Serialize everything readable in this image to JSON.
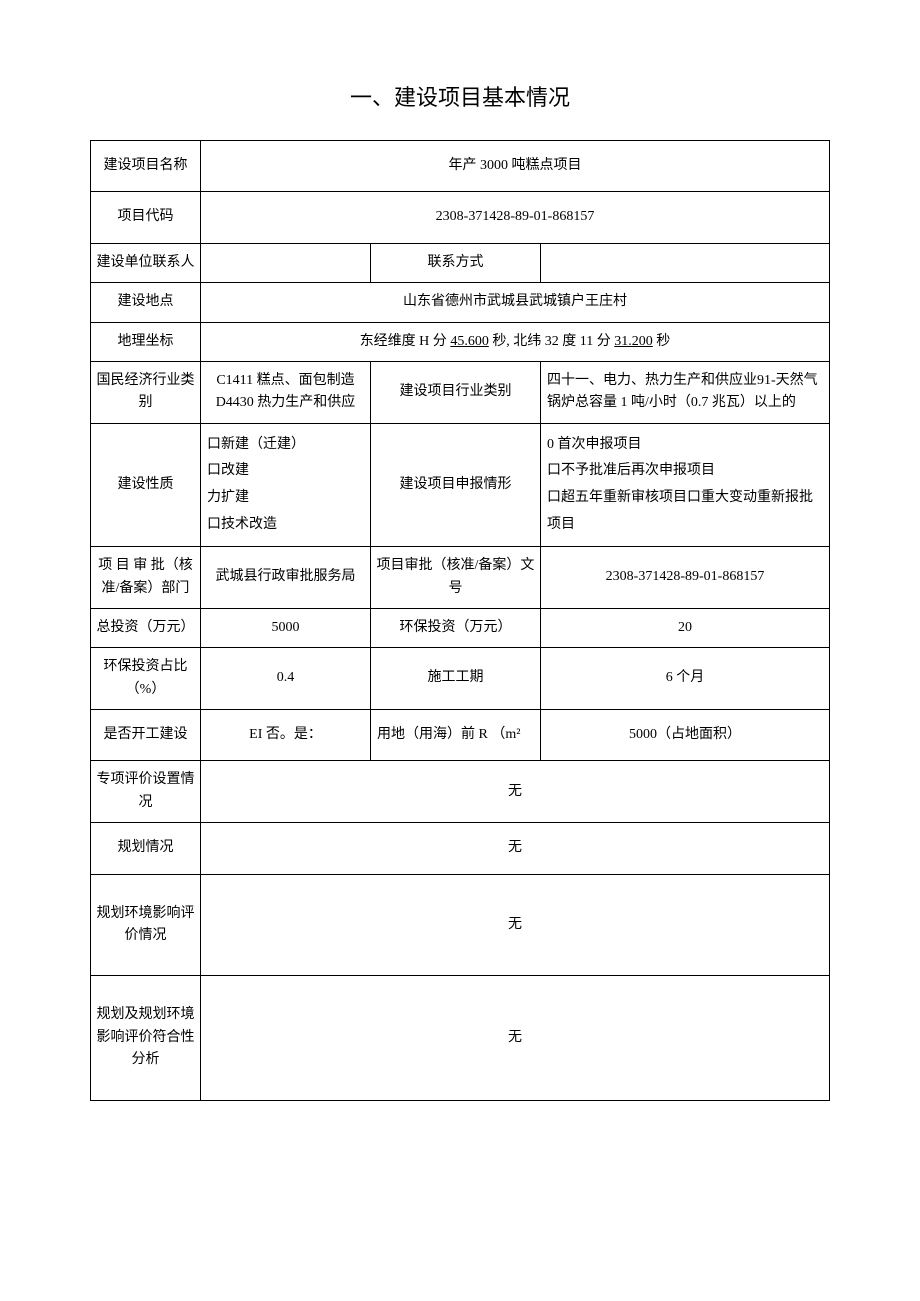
{
  "title": "一、建设项目基本情况",
  "rows": {
    "project_name": {
      "label": "建设项目名称",
      "value": "年产 3000 吨糕点项目"
    },
    "project_code": {
      "label": "项目代码",
      "value": "2308-371428-89-01-868157"
    },
    "contact": {
      "label": "建设单位联系人",
      "value": "",
      "label2": "联系方式",
      "value2": ""
    },
    "location": {
      "label": "建设地点",
      "value": "山东省德州市武城县武城镇户王庄村"
    },
    "coords": {
      "label": "地理坐标",
      "prefix": "东经维度 H 分 ",
      "val1": "45.600",
      "mid": " 秒, 北纬 32 度 11 分 ",
      "val2": "31.200",
      "suffix": " 秒"
    },
    "industry": {
      "label": "国民经济行业类别",
      "value": "C1411 糕点、面包制造 D4430 热力生产和供应",
      "label2": "建设项目行业类别",
      "value2": "四十一、电力、热力生产和供应业91-天然气锅炉总容量 1 吨/小时（0.7 兆瓦）以上的"
    },
    "nature": {
      "label": "建设性质",
      "value": "口新建（迁建）\n口改建\n力扩建\n口技术改造",
      "label2": "建设项目申报情形",
      "value2": "0 首次申报项目\n口不予批准后再次申报项目\n口超五年重新审核项目口重大变动重新报批项目"
    },
    "approval": {
      "label": "项 目 审 批（核准/备案）部门",
      "value": "武城县行政审批服务局",
      "label2": "项目审批（核准/备案）文号",
      "value2": "2308-371428-89-01-868157"
    },
    "investment": {
      "label": "总投资（万元）",
      "value": "5000",
      "label2": "环保投资（万元）",
      "value2": "20"
    },
    "ratio": {
      "label": "环保投资占比（%）",
      "value": "0.4",
      "label2": "施工工期",
      "value2": "6 个月"
    },
    "started": {
      "label": "是否开工建设",
      "value": "EI 否。是：",
      "label2": "用地（用海）前 R （m²",
      "value2": "5000（占地面积）"
    },
    "special": {
      "label": "专项评价设置情况",
      "value": "无"
    },
    "planning": {
      "label": "规划情况",
      "value": "无"
    },
    "plan_env": {
      "label": "规划环境影响评价情况",
      "value": "无"
    },
    "plan_conform": {
      "label": "规划及规划环境影响评价符合性分析",
      "value": "无"
    }
  }
}
